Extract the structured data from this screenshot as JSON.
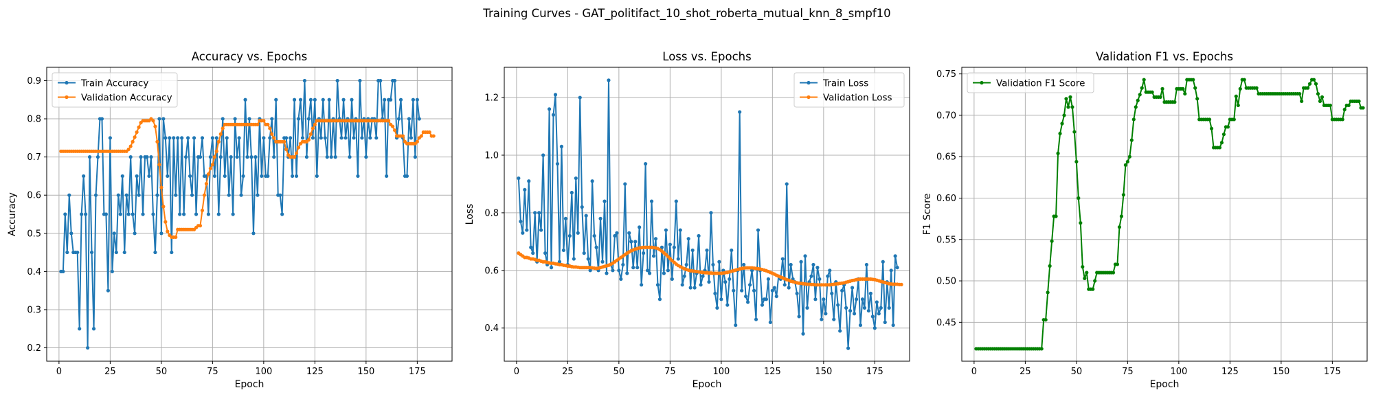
{
  "figure": {
    "suptitle": "Training Curves - GAT_politifact_10_shot_roberta_mutual_knn_8_smpf10"
  },
  "chart_data": [
    {
      "type": "line",
      "title": "Accuracy vs. Epochs",
      "xlabel": "Epoch",
      "ylabel": "Accuracy",
      "xlim": [
        -6,
        192
      ],
      "ylim": [
        0.165,
        0.935
      ],
      "xticks": [
        0,
        25,
        50,
        75,
        100,
        125,
        150,
        175
      ],
      "yticks": [
        0.2,
        0.3,
        0.4,
        0.5,
        0.6,
        0.7,
        0.8,
        0.9
      ],
      "grid": true,
      "legend_position": "top-left",
      "series": [
        {
          "name": "Train Accuracy",
          "color": "#1f77b4",
          "x_start": 1,
          "values": [
            0.4,
            0.4,
            0.55,
            0.45,
            0.6,
            0.5,
            0.45,
            0.45,
            0.45,
            0.25,
            0.55,
            0.65,
            0.55,
            0.2,
            0.7,
            0.45,
            0.25,
            0.6,
            0.7,
            0.8,
            0.8,
            0.55,
            0.55,
            0.35,
            0.75,
            0.4,
            0.5,
            0.45,
            0.6,
            0.55,
            0.65,
            0.45,
            0.6,
            0.55,
            0.7,
            0.55,
            0.5,
            0.65,
            0.6,
            0.7,
            0.55,
            0.7,
            0.7,
            0.65,
            0.7,
            0.55,
            0.45,
            0.6,
            0.8,
            0.5,
            0.8,
            0.75,
            0.65,
            0.75,
            0.45,
            0.75,
            0.6,
            0.75,
            0.55,
            0.75,
            0.55,
            0.7,
            0.75,
            0.65,
            0.6,
            0.75,
            0.55,
            0.7,
            0.7,
            0.75,
            0.65,
            0.65,
            0.55,
            0.7,
            0.75,
            0.65,
            0.75,
            0.55,
            0.7,
            0.8,
            0.65,
            0.75,
            0.6,
            0.7,
            0.55,
            0.8,
            0.7,
            0.75,
            0.6,
            0.65,
            0.85,
            0.7,
            0.8,
            0.7,
            0.5,
            0.7,
            0.6,
            0.8,
            0.65,
            0.75,
            0.65,
            0.65,
            0.75,
            0.8,
            0.7,
            0.85,
            0.6,
            0.6,
            0.55,
            0.75,
            0.75,
            0.7,
            0.75,
            0.65,
            0.85,
            0.65,
            0.8,
            0.85,
            0.75,
            0.9,
            0.7,
            0.8,
            0.85,
            0.75,
            0.85,
            0.65,
            0.8,
            0.75,
            0.85,
            0.75,
            0.7,
            0.85,
            0.7,
            0.8,
            0.7,
            0.9,
            0.8,
            0.75,
            0.85,
            0.75,
            0.8,
            0.7,
            0.85,
            0.75,
            0.8,
            0.65,
            0.9,
            0.75,
            0.8,
            0.7,
            0.8,
            0.75,
            0.8,
            0.8,
            0.75,
            0.9,
            0.9,
            0.8,
            0.85,
            0.65,
            0.85,
            0.85,
            0.9,
            0.9,
            0.75,
            0.8,
            0.85,
            0.75,
            0.65,
            0.65,
            0.8,
            0.75,
            0.85,
            0.7,
            0.85,
            0.8
          ]
        },
        {
          "name": "Validation Accuracy",
          "color": "#ff7f0e",
          "x_start": 1,
          "values": [
            0.715,
            0.715,
            0.715,
            0.715,
            0.715,
            0.715,
            0.715,
            0.715,
            0.715,
            0.715,
            0.715,
            0.715,
            0.715,
            0.715,
            0.715,
            0.715,
            0.715,
            0.715,
            0.715,
            0.715,
            0.715,
            0.715,
            0.715,
            0.715,
            0.715,
            0.715,
            0.715,
            0.715,
            0.715,
            0.715,
            0.715,
            0.715,
            0.715,
            0.72,
            0.728,
            0.74,
            0.752,
            0.765,
            0.778,
            0.79,
            0.795,
            0.795,
            0.795,
            0.795,
            0.8,
            0.795,
            0.78,
            0.74,
            0.68,
            0.62,
            0.57,
            0.53,
            0.505,
            0.495,
            0.49,
            0.49,
            0.49,
            0.51,
            0.51,
            0.51,
            0.51,
            0.51,
            0.51,
            0.51,
            0.51,
            0.51,
            0.515,
            0.52,
            0.52,
            0.56,
            0.6,
            0.63,
            0.655,
            0.67,
            0.68,
            0.7,
            0.715,
            0.74,
            0.76,
            0.775,
            0.785,
            0.785,
            0.785,
            0.785,
            0.785,
            0.785,
            0.785,
            0.785,
            0.785,
            0.785,
            0.785,
            0.785,
            0.785,
            0.785,
            0.785,
            0.785,
            0.785,
            0.795,
            0.795,
            0.795,
            0.785,
            0.785,
            0.775,
            0.76,
            0.75,
            0.74,
            0.74,
            0.74,
            0.74,
            0.74,
            0.72,
            0.705,
            0.7,
            0.7,
            0.7,
            0.71,
            0.725,
            0.735,
            0.74,
            0.74,
            0.74,
            0.745,
            0.76,
            0.775,
            0.785,
            0.795,
            0.795,
            0.795,
            0.795,
            0.795,
            0.795,
            0.795,
            0.795,
            0.795,
            0.795,
            0.795,
            0.795,
            0.795,
            0.795,
            0.795,
            0.795,
            0.795,
            0.795,
            0.795,
            0.795,
            0.795,
            0.795,
            0.795,
            0.795,
            0.795,
            0.795,
            0.795,
            0.795,
            0.795,
            0.795,
            0.795,
            0.795,
            0.795,
            0.795,
            0.795,
            0.795,
            0.785,
            0.78,
            0.77,
            0.755,
            0.755,
            0.755,
            0.755,
            0.74,
            0.735,
            0.735,
            0.735,
            0.735,
            0.735,
            0.74,
            0.75,
            0.755,
            0.765,
            0.765,
            0.765,
            0.765,
            0.755,
            0.755
          ]
        }
      ]
    },
    {
      "type": "line",
      "title": "Loss vs. Epochs",
      "xlabel": "Epoch",
      "ylabel": "Loss",
      "xlim": [
        -6,
        192
      ],
      "ylim": [
        0.285,
        1.305
      ],
      "xticks": [
        0,
        25,
        50,
        75,
        100,
        125,
        150,
        175
      ],
      "yticks": [
        0.4,
        0.6,
        0.8,
        1.0,
        1.2
      ],
      "ytick_labels": [
        "0.4",
        "0.6",
        "0.8",
        "1.0",
        "1.2"
      ],
      "grid": true,
      "legend_position": "top-right",
      "series": [
        {
          "name": "Train Loss",
          "color": "#1f77b4",
          "x_start": 1,
          "values": [
            0.92,
            0.77,
            0.73,
            0.88,
            0.74,
            0.91,
            0.68,
            0.66,
            0.8,
            0.63,
            0.8,
            0.74,
            1.0,
            0.66,
            0.62,
            1.16,
            0.61,
            1.14,
            1.21,
            0.97,
            0.63,
            1.03,
            0.67,
            0.78,
            0.62,
            0.72,
            0.87,
            0.64,
            0.92,
            0.73,
            1.2,
            0.82,
            0.66,
            0.79,
            0.64,
            0.6,
            0.91,
            0.72,
            0.68,
            0.6,
            0.78,
            0.63,
            0.84,
            0.59,
            1.26,
            0.62,
            0.6,
            0.72,
            0.73,
            0.6,
            0.57,
            0.62,
            0.9,
            0.59,
            0.73,
            0.7,
            0.61,
            0.7,
            0.61,
            0.75,
            0.55,
            0.66,
            0.97,
            0.6,
            0.59,
            0.84,
            0.65,
            0.71,
            0.55,
            0.5,
            0.68,
            0.59,
            0.74,
            0.6,
            0.69,
            0.57,
            0.68,
            0.84,
            0.64,
            0.74,
            0.55,
            0.58,
            0.62,
            0.71,
            0.54,
            0.67,
            0.54,
            0.59,
            0.72,
            0.55,
            0.58,
            0.6,
            0.67,
            0.56,
            0.8,
            0.62,
            0.52,
            0.47,
            0.63,
            0.5,
            0.6,
            0.56,
            0.48,
            0.57,
            0.67,
            0.53,
            0.41,
            0.6,
            1.15,
            0.53,
            0.62,
            0.51,
            0.49,
            0.55,
            0.6,
            0.53,
            0.43,
            0.74,
            0.6,
            0.48,
            0.5,
            0.5,
            0.57,
            0.42,
            0.53,
            0.54,
            0.51,
            0.58,
            0.57,
            0.64,
            0.55,
            0.9,
            0.54,
            0.62,
            0.57,
            0.56,
            0.52,
            0.44,
            0.63,
            0.38,
            0.65,
            0.47,
            0.56,
            0.58,
            0.62,
            0.5,
            0.61,
            0.57,
            0.43,
            0.5,
            0.45,
            0.58,
            0.6,
            0.52,
            0.43,
            0.56,
            0.48,
            0.39,
            0.53,
            0.55,
            0.47,
            0.33,
            0.46,
            0.54,
            0.45,
            0.5,
            0.57,
            0.41,
            0.5,
            0.47,
            0.62,
            0.46,
            0.52,
            0.44,
            0.4,
            0.49,
            0.45,
            0.47,
            0.63,
            0.42,
            0.56,
            0.47,
            0.6,
            0.41,
            0.65,
            0.61
          ]
        },
        {
          "name": "Validation Loss",
          "color": "#ff7f0e",
          "x_start": 1,
          "values": [
            0.66,
            0.655,
            0.65,
            0.645,
            0.645,
            0.643,
            0.64,
            0.64,
            0.638,
            0.635,
            0.635,
            0.632,
            0.63,
            0.63,
            0.628,
            0.626,
            0.625,
            0.625,
            0.623,
            0.622,
            0.62,
            0.62,
            0.618,
            0.617,
            0.615,
            0.615,
            0.613,
            0.612,
            0.612,
            0.611,
            0.61,
            0.61,
            0.61,
            0.61,
            0.61,
            0.61,
            0.609,
            0.608,
            0.607,
            0.608,
            0.61,
            0.612,
            0.614,
            0.616,
            0.618,
            0.621,
            0.625,
            0.63,
            0.635,
            0.64,
            0.645,
            0.65,
            0.655,
            0.66,
            0.664,
            0.668,
            0.671,
            0.674,
            0.676,
            0.678,
            0.679,
            0.68,
            0.68,
            0.68,
            0.68,
            0.68,
            0.679,
            0.678,
            0.676,
            0.672,
            0.667,
            0.661,
            0.655,
            0.648,
            0.641,
            0.634,
            0.628,
            0.622,
            0.617,
            0.613,
            0.609,
            0.606,
            0.603,
            0.601,
            0.599,
            0.598,
            0.597,
            0.596,
            0.595,
            0.594,
            0.593,
            0.592,
            0.592,
            0.591,
            0.591,
            0.59,
            0.59,
            0.59,
            0.59,
            0.59,
            0.591,
            0.592,
            0.593,
            0.595,
            0.597,
            0.599,
            0.601,
            0.603,
            0.605,
            0.607,
            0.608,
            0.609,
            0.609,
            0.609,
            0.609,
            0.608,
            0.607,
            0.606,
            0.605,
            0.603,
            0.601,
            0.599,
            0.596,
            0.593,
            0.59,
            0.587,
            0.583,
            0.58,
            0.577,
            0.574,
            0.571,
            0.568,
            0.566,
            0.563,
            0.561,
            0.559,
            0.557,
            0.556,
            0.555,
            0.554,
            0.553,
            0.552,
            0.552,
            0.551,
            0.551,
            0.55,
            0.55,
            0.55,
            0.55,
            0.55,
            0.55,
            0.55,
            0.55,
            0.551,
            0.552,
            0.553,
            0.554,
            0.555,
            0.556,
            0.557,
            0.559,
            0.561,
            0.563,
            0.565,
            0.566,
            0.568,
            0.569,
            0.57,
            0.57,
            0.57,
            0.57,
            0.57,
            0.57,
            0.569,
            0.568,
            0.566,
            0.564,
            0.562,
            0.56,
            0.558,
            0.556,
            0.554,
            0.553,
            0.552,
            0.552,
            0.552,
            0.551,
            0.551
          ]
        }
      ]
    },
    {
      "type": "line",
      "title": "Validation F1 vs. Epochs",
      "xlabel": "Epoch",
      "ylabel": "F1 Score",
      "xlim": [
        -6,
        192
      ],
      "ylim": [
        0.403,
        0.758
      ],
      "xticks": [
        0,
        25,
        50,
        75,
        100,
        125,
        150,
        175
      ],
      "yticks": [
        0.45,
        0.5,
        0.55,
        0.6,
        0.65,
        0.7,
        0.75
      ],
      "ytick_labels": [
        "0.45",
        "0.50",
        "0.55",
        "0.60",
        "0.65",
        "0.70",
        "0.75"
      ],
      "grid": true,
      "legend_position": "top-left",
      "series": [
        {
          "name": "Validation F1 Score",
          "color": "#008000",
          "x_start": 1,
          "values": [
            0.418,
            0.418,
            0.418,
            0.418,
            0.418,
            0.418,
            0.418,
            0.418,
            0.418,
            0.418,
            0.418,
            0.418,
            0.418,
            0.418,
            0.418,
            0.418,
            0.418,
            0.418,
            0.418,
            0.418,
            0.418,
            0.418,
            0.418,
            0.418,
            0.418,
            0.418,
            0.418,
            0.418,
            0.418,
            0.418,
            0.418,
            0.418,
            0.418,
            0.453,
            0.453,
            0.486,
            0.518,
            0.548,
            0.578,
            0.578,
            0.654,
            0.678,
            0.69,
            0.7,
            0.72,
            0.71,
            0.722,
            0.71,
            0.68,
            0.644,
            0.6,
            0.57,
            0.517,
            0.503,
            0.51,
            0.49,
            0.49,
            0.49,
            0.5,
            0.51,
            0.51,
            0.51,
            0.51,
            0.51,
            0.51,
            0.51,
            0.51,
            0.51,
            0.52,
            0.52,
            0.565,
            0.578,
            0.604,
            0.64,
            0.644,
            0.65,
            0.67,
            0.695,
            0.71,
            0.718,
            0.725,
            0.733,
            0.743,
            0.728,
            0.728,
            0.728,
            0.728,
            0.722,
            0.722,
            0.722,
            0.722,
            0.732,
            0.716,
            0.716,
            0.716,
            0.716,
            0.716,
            0.716,
            0.732,
            0.732,
            0.732,
            0.732,
            0.726,
            0.743,
            0.743,
            0.743,
            0.743,
            0.733,
            0.72,
            0.695,
            0.695,
            0.695,
            0.695,
            0.695,
            0.695,
            0.684,
            0.661,
            0.661,
            0.661,
            0.661,
            0.667,
            0.677,
            0.686,
            0.686,
            0.695,
            0.695,
            0.695,
            0.723,
            0.712,
            0.732,
            0.743,
            0.743,
            0.733,
            0.733,
            0.733,
            0.733,
            0.733,
            0.733,
            0.726,
            0.726,
            0.726,
            0.726,
            0.726,
            0.726,
            0.726,
            0.726,
            0.726,
            0.726,
            0.726,
            0.726,
            0.726,
            0.726,
            0.726,
            0.726,
            0.726,
            0.726,
            0.726,
            0.726,
            0.726,
            0.717,
            0.733,
            0.733,
            0.733,
            0.738,
            0.743,
            0.743,
            0.738,
            0.726,
            0.717,
            0.722,
            0.712,
            0.712,
            0.712,
            0.712,
            0.695,
            0.695,
            0.695,
            0.695,
            0.695,
            0.695,
            0.707,
            0.712,
            0.712,
            0.717,
            0.717,
            0.717,
            0.717,
            0.717,
            0.709,
            0.709
          ]
        }
      ]
    }
  ]
}
